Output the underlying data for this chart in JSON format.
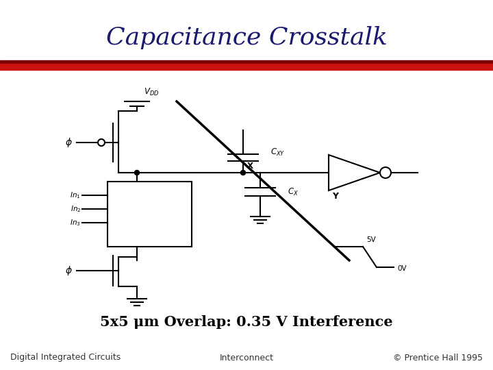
{
  "title": "Capacitance Crosstalk",
  "title_color": "#1a1a6e",
  "title_fontsize": 26,
  "bg_color": "#ffffff",
  "footer_left": "Digital Integrated Circuits",
  "footer_center": "Interconnect",
  "footer_right": "© Prentice Hall 1995",
  "footer_fontsize": 9,
  "footer_color": "#333333",
  "caption": "5x5 μm Overlap: 0.35 V Interference",
  "caption_fontsize": 15,
  "caption_color": "#000000"
}
